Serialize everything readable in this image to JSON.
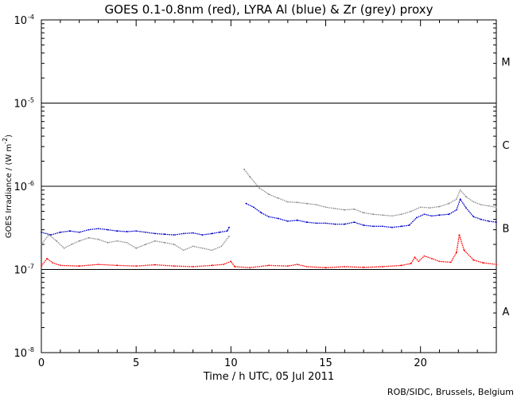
{
  "chart_data": {
    "type": "line",
    "title": "GOES 0.1-0.8nm (red), LYRA Al (blue) & Zr (grey) proxy",
    "xlabel": "Time / h UTC, 05 Jul 2011",
    "ylabel_base": "GOES Irradiance / (W m",
    "ylabel_exp": "-2",
    "ylabel_tail": ")",
    "xlim": [
      0,
      24
    ],
    "ylim": [
      1e-08,
      0.0001
    ],
    "y_scale": "log",
    "x_ticks": [
      {
        "value": 0,
        "label": "0"
      },
      {
        "value": 5,
        "label": "5"
      },
      {
        "value": 10,
        "label": "10"
      },
      {
        "value": 15,
        "label": "15"
      },
      {
        "value": 20,
        "label": "20"
      }
    ],
    "y_ticks": [
      {
        "value": 1e-08,
        "base": "10",
        "exp": "-8"
      },
      {
        "value": 1e-07,
        "base": "10",
        "exp": "-7"
      },
      {
        "value": 1e-06,
        "base": "10",
        "exp": "-6"
      },
      {
        "value": 1e-05,
        "base": "10",
        "exp": "-5"
      },
      {
        "value": 0.0001,
        "base": "10",
        "exp": "-4"
      }
    ],
    "flare_thresholds": [
      1e-07,
      1e-06,
      1e-05
    ],
    "flare_classes": [
      {
        "label": "A",
        "value": 3.16e-08
      },
      {
        "label": "B",
        "value": 3.16e-07
      },
      {
        "label": "C",
        "value": 3.16e-06
      },
      {
        "label": "M",
        "value": 3.16e-05
      }
    ],
    "series": [
      {
        "color": "#ff0000",
        "segments": [
          [
            [
              0.0,
              1.1e-07
            ],
            [
              0.3,
              1.35e-07
            ],
            [
              0.6,
              1.2e-07
            ],
            [
              1.0,
              1.12e-07
            ],
            [
              2.0,
              1.1e-07
            ],
            [
              3.0,
              1.15e-07
            ],
            [
              4.0,
              1.12e-07
            ],
            [
              5.0,
              1.1e-07
            ],
            [
              6.0,
              1.14e-07
            ],
            [
              7.0,
              1.1e-07
            ],
            [
              8.0,
              1.08e-07
            ],
            [
              9.0,
              1.12e-07
            ],
            [
              9.6,
              1.15e-07
            ],
            [
              10.0,
              1.25e-07
            ],
            [
              10.2,
              1.08e-07
            ],
            [
              11.0,
              1.05e-07
            ],
            [
              12.0,
              1.12e-07
            ],
            [
              13.0,
              1.1e-07
            ],
            [
              13.5,
              1.15e-07
            ],
            [
              14.0,
              1.08e-07
            ],
            [
              15.0,
              1.05e-07
            ],
            [
              16.0,
              1.08e-07
            ],
            [
              17.0,
              1.06e-07
            ],
            [
              18.0,
              1.08e-07
            ],
            [
              19.0,
              1.12e-07
            ],
            [
              19.5,
              1.18e-07
            ],
            [
              19.7,
              1.4e-07
            ],
            [
              19.9,
              1.25e-07
            ],
            [
              20.2,
              1.45e-07
            ],
            [
              20.6,
              1.35e-07
            ],
            [
              21.0,
              1.25e-07
            ],
            [
              21.6,
              1.22e-07
            ],
            [
              21.9,
              1.6e-07
            ],
            [
              22.05,
              2.6e-07
            ],
            [
              22.3,
              1.7e-07
            ],
            [
              22.8,
              1.3e-07
            ],
            [
              23.3,
              1.2e-07
            ],
            [
              24.0,
              1.15e-07
            ]
          ]
        ]
      },
      {
        "color": "#0000c8",
        "segments": [
          [
            [
              0.0,
              2.8e-07
            ],
            [
              0.5,
              2.6e-07
            ],
            [
              1.0,
              2.8e-07
            ],
            [
              1.5,
              2.9e-07
            ],
            [
              2.0,
              2.8e-07
            ],
            [
              2.5,
              3e-07
            ],
            [
              3.0,
              3.1e-07
            ],
            [
              3.5,
              3e-07
            ],
            [
              4.0,
              2.9e-07
            ],
            [
              4.5,
              2.85e-07
            ],
            [
              5.0,
              2.9e-07
            ],
            [
              5.5,
              2.8e-07
            ],
            [
              6.0,
              2.7e-07
            ],
            [
              6.5,
              2.65e-07
            ],
            [
              7.0,
              2.6e-07
            ],
            [
              7.5,
              2.7e-07
            ],
            [
              8.0,
              2.75e-07
            ],
            [
              8.5,
              2.6e-07
            ],
            [
              9.0,
              2.7e-07
            ],
            [
              9.4,
              2.8e-07
            ],
            [
              9.8,
              2.9e-07
            ],
            [
              9.9,
              3.2e-07
            ]
          ],
          [
            [
              10.8,
              6.2e-07
            ],
            [
              11.2,
              5.6e-07
            ],
            [
              11.6,
              4.8e-07
            ],
            [
              12.0,
              4.3e-07
            ],
            [
              12.5,
              4.1e-07
            ],
            [
              13.0,
              3.8e-07
            ],
            [
              13.5,
              3.9e-07
            ],
            [
              14.0,
              3.7e-07
            ],
            [
              14.5,
              3.6e-07
            ],
            [
              15.0,
              3.6e-07
            ],
            [
              15.5,
              3.5e-07
            ],
            [
              16.0,
              3.5e-07
            ],
            [
              16.5,
              3.7e-07
            ],
            [
              17.0,
              3.4e-07
            ],
            [
              17.5,
              3.3e-07
            ],
            [
              18.0,
              3.3e-07
            ],
            [
              18.5,
              3.2e-07
            ],
            [
              19.0,
              3.3e-07
            ],
            [
              19.4,
              3.4e-07
            ],
            [
              19.8,
              4.2e-07
            ],
            [
              20.2,
              4.6e-07
            ],
            [
              20.6,
              4.4e-07
            ],
            [
              21.0,
              4.5e-07
            ],
            [
              21.5,
              4.6e-07
            ],
            [
              21.9,
              5.2e-07
            ],
            [
              22.1,
              7e-07
            ],
            [
              22.4,
              5.5e-07
            ],
            [
              22.8,
              4.3e-07
            ],
            [
              23.2,
              4e-07
            ],
            [
              23.6,
              3.8e-07
            ],
            [
              24.0,
              3.7e-07
            ]
          ]
        ]
      },
      {
        "color": "#909090",
        "segments": [
          [
            [
              0.0,
              2e-07
            ],
            [
              0.4,
              2.6e-07
            ],
            [
              0.8,
              2.2e-07
            ],
            [
              1.2,
              1.8e-07
            ],
            [
              1.6,
              2e-07
            ],
            [
              2.0,
              2.2e-07
            ],
            [
              2.5,
              2.4e-07
            ],
            [
              3.0,
              2.3e-07
            ],
            [
              3.5,
              2.1e-07
            ],
            [
              4.0,
              2.2e-07
            ],
            [
              4.5,
              2.1e-07
            ],
            [
              5.0,
              1.8e-07
            ],
            [
              5.5,
              2e-07
            ],
            [
              6.0,
              2.2e-07
            ],
            [
              6.5,
              2.1e-07
            ],
            [
              7.0,
              2e-07
            ],
            [
              7.5,
              1.7e-07
            ],
            [
              8.0,
              1.9e-07
            ],
            [
              8.5,
              1.8e-07
            ],
            [
              9.0,
              1.7e-07
            ],
            [
              9.5,
              1.9e-07
            ],
            [
              9.9,
              2.5e-07
            ]
          ],
          [
            [
              10.7,
              1.6e-06
            ],
            [
              11.0,
              1.3e-06
            ],
            [
              11.5,
              9.5e-07
            ],
            [
              12.0,
              8e-07
            ],
            [
              12.5,
              7.2e-07
            ],
            [
              13.0,
              6.5e-07
            ],
            [
              13.5,
              6.4e-07
            ],
            [
              14.0,
              6.2e-07
            ],
            [
              14.5,
              6e-07
            ],
            [
              15.0,
              5.6e-07
            ],
            [
              15.5,
              5.4e-07
            ],
            [
              16.0,
              5.2e-07
            ],
            [
              16.5,
              5.3e-07
            ],
            [
              17.0,
              4.8e-07
            ],
            [
              17.5,
              4.6e-07
            ],
            [
              18.0,
              4.5e-07
            ],
            [
              18.5,
              4.4e-07
            ],
            [
              19.0,
              4.6e-07
            ],
            [
              19.5,
              5e-07
            ],
            [
              20.0,
              5.6e-07
            ],
            [
              20.5,
              5.5e-07
            ],
            [
              21.0,
              5.7e-07
            ],
            [
              21.5,
              6.2e-07
            ],
            [
              21.9,
              7e-07
            ],
            [
              22.1,
              9e-07
            ],
            [
              22.4,
              7.5e-07
            ],
            [
              22.8,
              6.5e-07
            ],
            [
              23.2,
              6e-07
            ],
            [
              23.6,
              5.8e-07
            ],
            [
              24.0,
              5.6e-07
            ]
          ]
        ]
      }
    ]
  },
  "credit": "ROB/SIDC, Brussels, Belgium"
}
